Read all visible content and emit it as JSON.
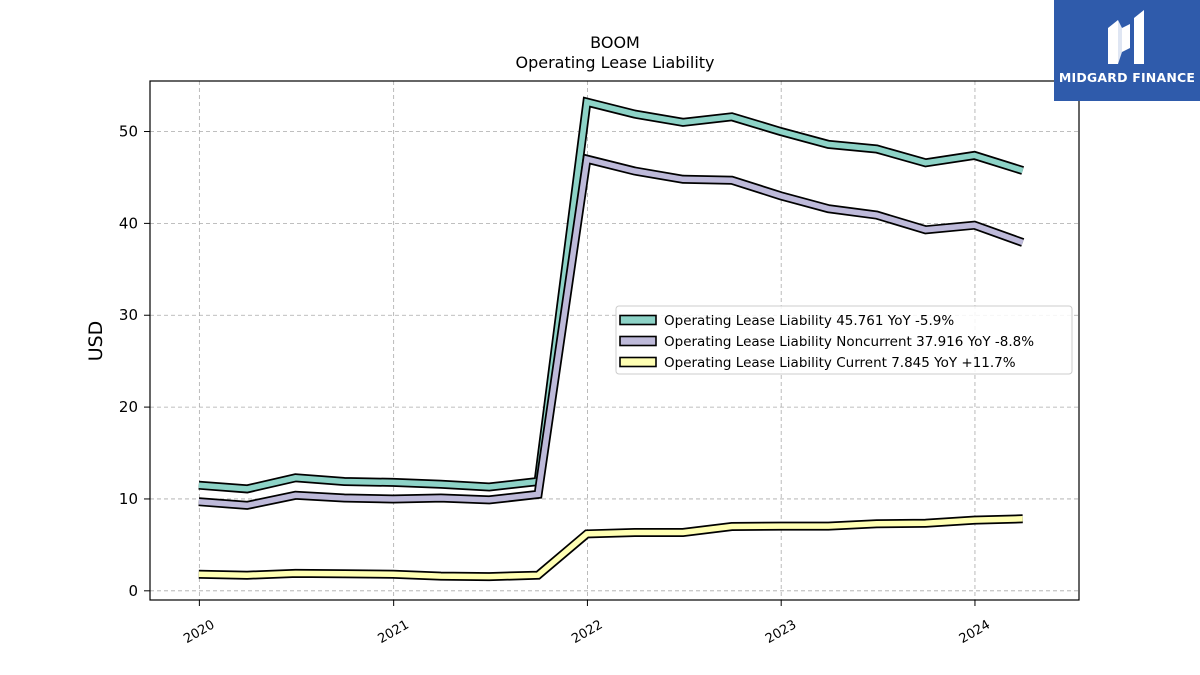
{
  "brand": {
    "name": "MIDGARD FINANCE"
  },
  "chart_data": {
    "type": "line",
    "title": "BOOM",
    "subtitle": "Operating Lease Liability",
    "ylabel": "USD",
    "xlabel": "",
    "ylim": [
      -1,
      55.5
    ],
    "xlim": [
      "2019-09-30",
      "2024-07-15"
    ],
    "yticks": [
      0,
      10,
      20,
      30,
      40,
      50
    ],
    "xticks": [
      "2020",
      "2021",
      "2022",
      "2023",
      "2024"
    ],
    "xtick_dates": [
      "2020-01-01",
      "2021-01-01",
      "2022-01-01",
      "2023-01-01",
      "2024-01-01"
    ],
    "grid": true,
    "legend_position": "center-right",
    "x": [
      "2019-12-31",
      "2020-03-31",
      "2020-06-30",
      "2020-09-30",
      "2020-12-31",
      "2021-03-31",
      "2021-06-30",
      "2021-09-30",
      "2021-12-31",
      "2022-03-31",
      "2022-06-30",
      "2022-09-30",
      "2022-12-31",
      "2023-03-31",
      "2023-06-30",
      "2023-09-30",
      "2023-12-31",
      "2024-03-31"
    ],
    "series": [
      {
        "name": "Operating Lease Liability  45.761 YoY -5.9%",
        "color": "#8dd3c7",
        "values": [
          11.5,
          11.1,
          12.3,
          11.9,
          11.8,
          11.6,
          11.3,
          11.9,
          53.2,
          51.9,
          51.0,
          51.6,
          50.0,
          48.6,
          48.1,
          46.6,
          47.4,
          45.761
        ]
      },
      {
        "name": "Operating Lease Liability Noncurrent  37.916 YoY -8.8%",
        "color": "#bebada",
        "values": [
          9.7,
          9.3,
          10.4,
          10.1,
          10.0,
          10.1,
          9.9,
          10.5,
          47.0,
          45.7,
          44.8,
          44.7,
          43.0,
          41.6,
          40.9,
          39.3,
          39.8,
          37.916
        ]
      },
      {
        "name": "Operating Lease Liability Current  7.845 YoY +11.7%",
        "color": "#ffffb3",
        "values": [
          1.8,
          1.7,
          1.9,
          1.85,
          1.8,
          1.6,
          1.55,
          1.7,
          6.2,
          6.35,
          6.35,
          7.0,
          7.05,
          7.05,
          7.3,
          7.35,
          7.7,
          7.845
        ]
      }
    ]
  }
}
